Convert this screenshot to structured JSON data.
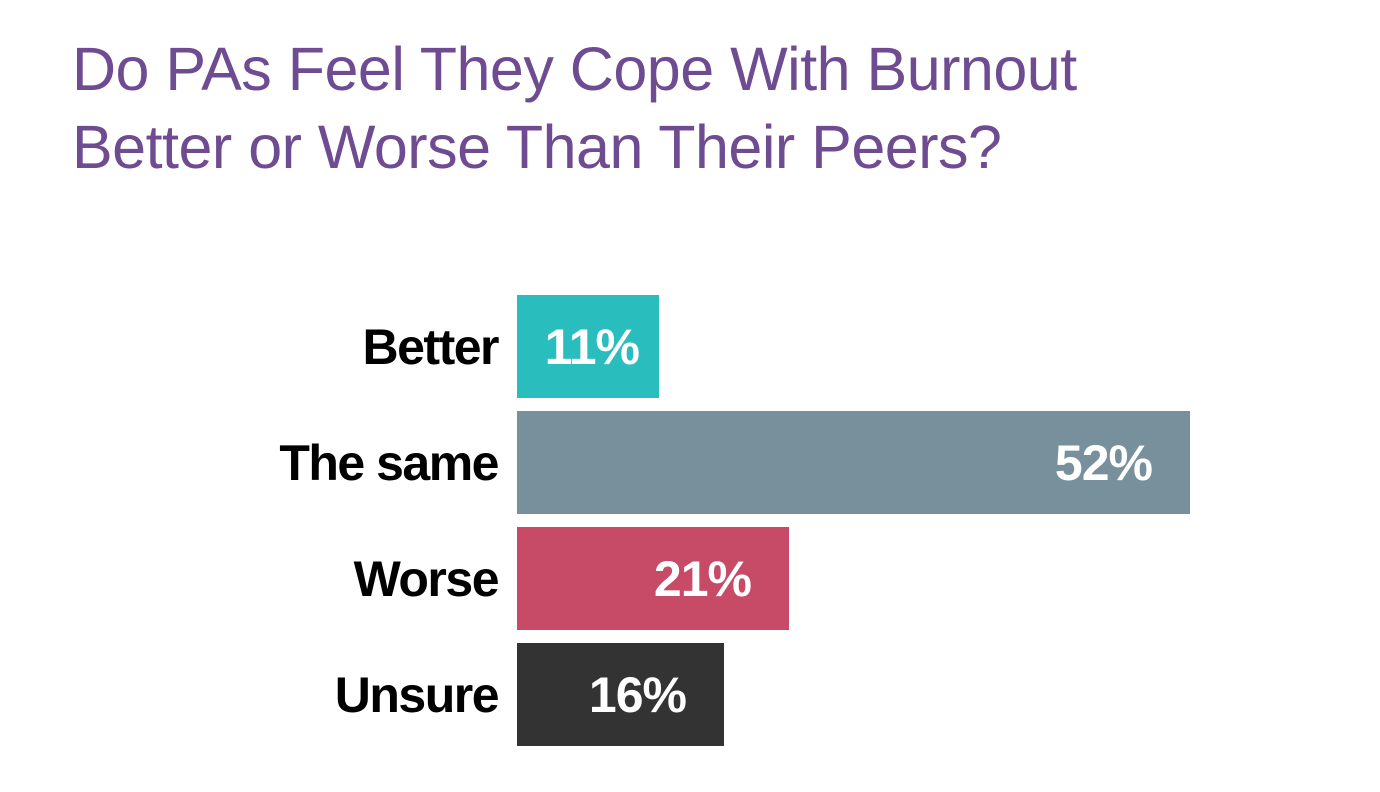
{
  "title": {
    "line1": "Do PAs Feel They Cope With Burnout",
    "line2": "Better or Worse Than Their Peers?",
    "color": "#6F4B92"
  },
  "chart_data": {
    "type": "bar",
    "orientation": "horizontal",
    "title": "Do PAs Feel They Cope With Burnout Better or Worse Than Their Peers?",
    "categories": [
      "Better",
      "The same",
      "Worse",
      "Unsure"
    ],
    "values": [
      11,
      52,
      21,
      16
    ],
    "value_labels": [
      "11%",
      "52%",
      "21%",
      "16%"
    ],
    "bar_colors": [
      "#2ABDBD",
      "#78909C",
      "#C74B67",
      "#333333"
    ],
    "value_label_color": "#FFFFFF",
    "category_label_color": "#000000",
    "xlim": [
      0,
      100
    ],
    "grid": false,
    "legend": false,
    "axes_visible": false
  }
}
